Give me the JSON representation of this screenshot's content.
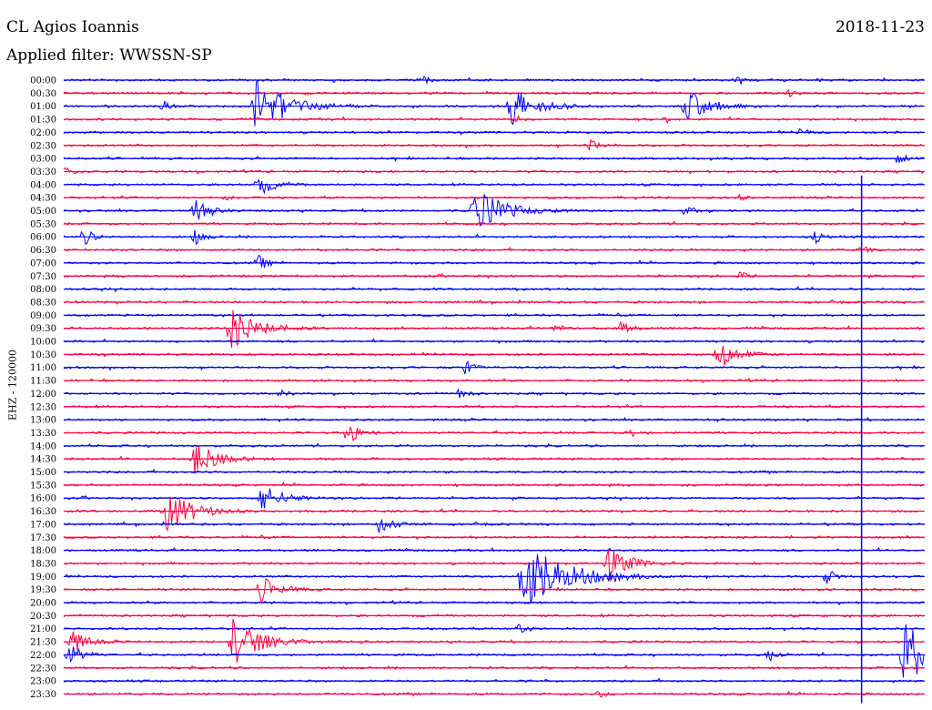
{
  "header": {
    "station": "CL Agios Ioannis",
    "date": "2018-11-23",
    "filter_label": "Applied filter: WWSSN-SP"
  },
  "colors": {
    "even_trace": "#0000ff",
    "odd_trace": "#ff0040",
    "background": "#ffffff",
    "text": "#000000"
  },
  "chart_data": {
    "type": "line",
    "title": "CL Agios Ioannis",
    "ylabel": "EHZ - 120000",
    "x_unit": "minutes",
    "xlim": [
      0,
      30
    ],
    "row_labels": [
      "00:00",
      "00:30",
      "01:00",
      "01:30",
      "02:00",
      "02:30",
      "03:00",
      "03:30",
      "04:00",
      "04:30",
      "05:00",
      "05:30",
      "06:00",
      "06:30",
      "07:00",
      "07:30",
      "08:00",
      "08:30",
      "09:00",
      "09:30",
      "10:00",
      "10:30",
      "11:00",
      "11:30",
      "12:00",
      "12:30",
      "13:00",
      "13:30",
      "14:00",
      "14:30",
      "15:00",
      "15:30",
      "16:00",
      "16:30",
      "17:00",
      "17:30",
      "18:00",
      "18:30",
      "19:00",
      "19:30",
      "20:00",
      "20:30",
      "21:00",
      "21:30",
      "22:00",
      "22:30",
      "23:00",
      "23:30"
    ],
    "series_colors": [
      "#0000ff",
      "#ff0040"
    ],
    "events": [
      {
        "row": "00:00",
        "minute": 12.6,
        "amplitude": 0.35
      },
      {
        "row": "00:00",
        "minute": 23.5,
        "amplitude": 0.45
      },
      {
        "row": "00:30",
        "minute": 25.3,
        "amplitude": 0.3
      },
      {
        "row": "01:00",
        "minute": 3.5,
        "amplitude": 0.4
      },
      {
        "row": "01:00",
        "minute": 6.7,
        "amplitude": 2.3
      },
      {
        "row": "01:00",
        "minute": 15.6,
        "amplitude": 1.7
      },
      {
        "row": "01:00",
        "minute": 21.7,
        "amplitude": 1.5
      },
      {
        "row": "01:30",
        "minute": 15.8,
        "amplitude": 0.3
      },
      {
        "row": "01:30",
        "minute": 21.0,
        "amplitude": 0.3
      },
      {
        "row": "02:00",
        "minute": 25.7,
        "amplitude": 0.4
      },
      {
        "row": "02:30",
        "minute": 18.3,
        "amplitude": 0.6
      },
      {
        "row": "03:00",
        "minute": 29.1,
        "amplitude": 0.6
      },
      {
        "row": "03:30",
        "minute": 0.1,
        "amplitude": 0.5
      },
      {
        "row": "04:00",
        "minute": 6.8,
        "amplitude": 1.0
      },
      {
        "row": "04:30",
        "minute": 5.7,
        "amplitude": 0.3
      },
      {
        "row": "04:30",
        "minute": 23.6,
        "amplitude": 0.3
      },
      {
        "row": "05:00",
        "minute": 4.6,
        "amplitude": 0.9
      },
      {
        "row": "05:00",
        "minute": 14.3,
        "amplitude": 2.0
      },
      {
        "row": "05:00",
        "minute": 21.7,
        "amplitude": 0.5
      },
      {
        "row": "06:00",
        "minute": 0.7,
        "amplitude": 0.7
      },
      {
        "row": "06:00",
        "minute": 4.6,
        "amplitude": 0.6
      },
      {
        "row": "06:00",
        "minute": 26.2,
        "amplitude": 0.5
      },
      {
        "row": "06:30",
        "minute": 27.8,
        "amplitude": 0.5
      },
      {
        "row": "07:00",
        "minute": 6.8,
        "amplitude": 0.6
      },
      {
        "row": "07:30",
        "minute": 23.6,
        "amplitude": 0.4
      },
      {
        "row": "09:30",
        "minute": 5.8,
        "amplitude": 1.8
      },
      {
        "row": "09:30",
        "minute": 17.2,
        "amplitude": 0.4
      },
      {
        "row": "09:30",
        "minute": 19.4,
        "amplitude": 0.6
      },
      {
        "row": "10:30",
        "minute": 22.8,
        "amplitude": 1.3
      },
      {
        "row": "11:00",
        "minute": 14.0,
        "amplitude": 0.6
      },
      {
        "row": "12:00",
        "minute": 7.6,
        "amplitude": 0.5
      },
      {
        "row": "12:00",
        "minute": 13.8,
        "amplitude": 0.5
      },
      {
        "row": "13:30",
        "minute": 9.9,
        "amplitude": 0.9
      },
      {
        "row": "13:30",
        "minute": 19.7,
        "amplitude": 0.5
      },
      {
        "row": "14:30",
        "minute": 4.6,
        "amplitude": 1.5
      },
      {
        "row": "16:00",
        "minute": 6.9,
        "amplitude": 1.3
      },
      {
        "row": "16:30",
        "minute": 3.6,
        "amplitude": 1.8
      },
      {
        "row": "17:00",
        "minute": 11.0,
        "amplitude": 0.9
      },
      {
        "row": "19:00",
        "minute": 16.0,
        "amplitude": 3.0
      },
      {
        "row": "19:00",
        "minute": 26.6,
        "amplitude": 0.6
      },
      {
        "row": "18:30",
        "minute": 19.0,
        "amplitude": 1.5
      },
      {
        "row": "19:30",
        "minute": 6.9,
        "amplitude": 1.2
      },
      {
        "row": "21:00",
        "minute": 15.9,
        "amplitude": 0.5
      },
      {
        "row": "21:30",
        "minute": 5.9,
        "amplitude": 2.0
      },
      {
        "row": "21:30",
        "minute": 0.3,
        "amplitude": 1.0
      },
      {
        "row": "22:00",
        "minute": 0.2,
        "amplitude": 0.9
      },
      {
        "row": "22:00",
        "minute": 24.6,
        "amplitude": 0.5
      },
      {
        "row": "23:30",
        "minute": 18.7,
        "amplitude": 0.4
      },
      {
        "row": "22:00",
        "minute": 29.3,
        "amplitude": 2.6
      }
    ],
    "spike": {
      "row_start": "04:00",
      "row_end": "23:30",
      "minute": 27.8
    }
  }
}
